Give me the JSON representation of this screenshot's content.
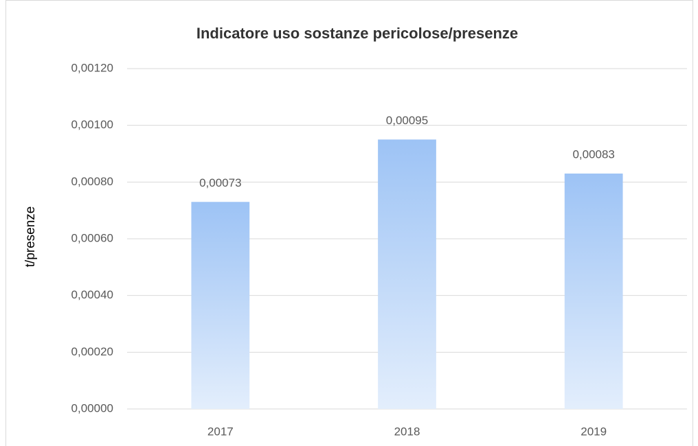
{
  "chart_data": {
    "type": "bar",
    "title": "Indicatore uso sostanze pericolose/presenze",
    "ylabel": "t/presenze",
    "categories": [
      "2017",
      "2018",
      "2019"
    ],
    "values": [
      0.00073,
      0.00095,
      0.00083
    ],
    "value_labels": [
      "0,00073",
      "0,00095",
      "0,00083"
    ],
    "color": "#9dc3f5",
    "ylim": [
      0,
      0.0012
    ],
    "yticks": [
      {
        "value": 0,
        "label": "0,00000"
      },
      {
        "value": 0.0002,
        "label": "0,00020"
      },
      {
        "value": 0.0004,
        "label": "0,00040"
      },
      {
        "value": 0.0006,
        "label": "0,00060"
      },
      {
        "value": 0.0008,
        "label": "0,00080"
      },
      {
        "value": 0.001,
        "label": "0,00100"
      },
      {
        "value": 0.0012,
        "label": "0,00120"
      }
    ],
    "grid": true
  }
}
